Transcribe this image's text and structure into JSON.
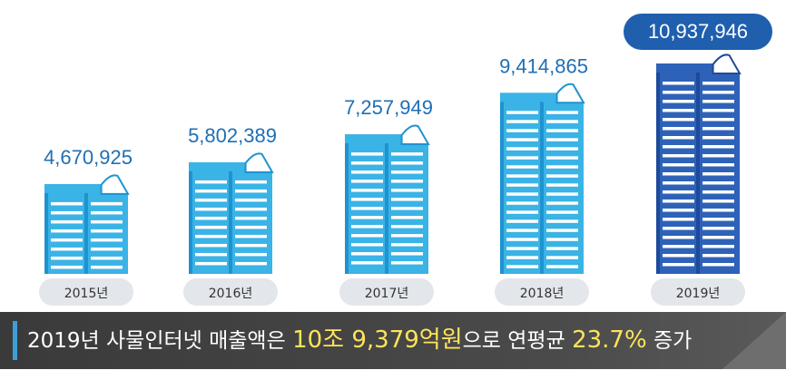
{
  "chart_data": {
    "type": "bar",
    "title": "",
    "xlabel": "",
    "ylabel": "",
    "categories": [
      "2015년",
      "2016년",
      "2017년",
      "2018년",
      "2019년"
    ],
    "values": [
      4670925,
      5802389,
      7257949,
      9414865,
      10937946
    ],
    "value_labels": [
      "4,670,925",
      "5,802,389",
      "7,257,949",
      "9,414,865",
      "10,937,946"
    ],
    "highlight_index": 4,
    "colors": {
      "bar": "#3ab3e6",
      "bar_side": "#1e93cf",
      "bar_highlight": "#2e62b8",
      "bar_highlight_side": "#1d4a9a",
      "value_text": "#1f6fb4",
      "value_badge": "#1f5fae",
      "year_pill": "#e3e6ea"
    }
  },
  "summary": {
    "prefix": "2019년 사물인터넷 매출액은 ",
    "highlight_amount": "10조 9,379억원",
    "middle": "으로 연평균 ",
    "highlight_rate": "23.7%",
    "suffix": " 증가"
  }
}
